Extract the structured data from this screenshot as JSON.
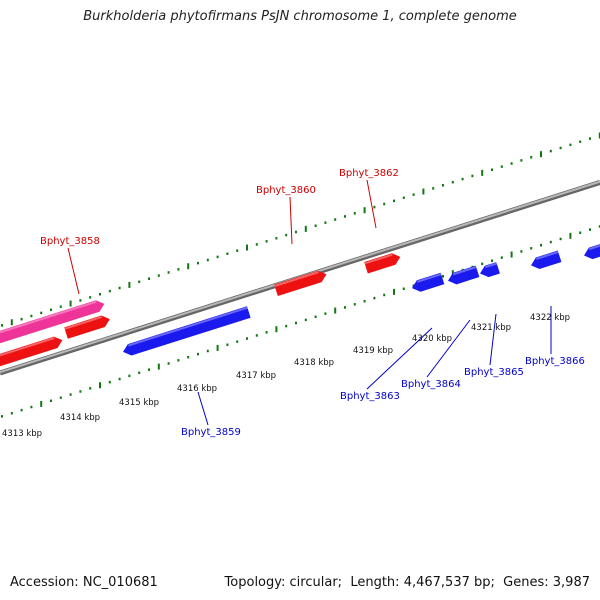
{
  "title": "Burkholderia phytofirmans PsJN chromosome 1, complete genome",
  "footer": {
    "accession_label": "Accession:",
    "accession": "NC_010681",
    "topology_label": "Topology:",
    "topology": "circular",
    "length_label": "Length:",
    "length": "4,467,537 bp",
    "genes_label": "Genes:",
    "genes": "3,987"
  },
  "colors": {
    "forward_gene": "#ee1111",
    "reverse_gene": "#1a1aee",
    "rna_gene": "#ee3399",
    "forward_label": "#cc0000",
    "reverse_label": "#0000cc",
    "backbone": "#888888",
    "tick": "#117711"
  },
  "scale_labels": [
    "4313 kbp",
    "4314 kbp",
    "4315 kbp",
    "4316 kbp",
    "4317 kbp",
    "4318 kbp",
    "4319 kbp",
    "4320 kbp",
    "4321 kbp",
    "4322 kbp"
  ],
  "forward_gene_labels": [
    "Bphyt_3858",
    "Bphyt_3860",
    "Bphyt_3862"
  ],
  "reverse_gene_labels": [
    "Bphyt_3859",
    "Bphyt_3863",
    "Bphyt_3864",
    "Bphyt_3865",
    "Bphyt_3866"
  ]
}
